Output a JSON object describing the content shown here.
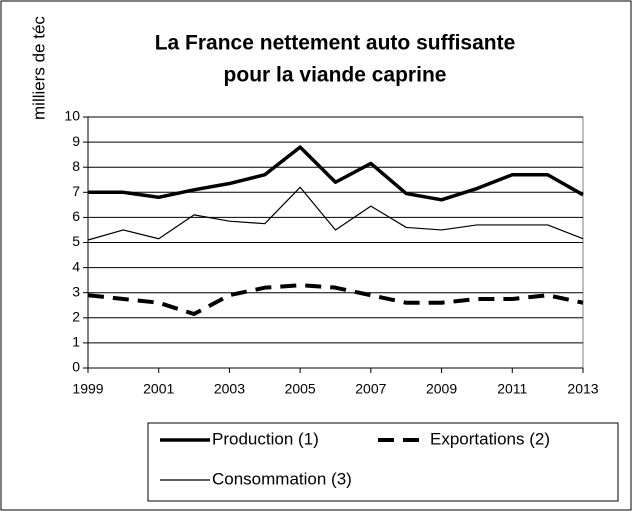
{
  "chart_data": {
    "type": "line",
    "title": [
      "La France nettement auto suffisante",
      "pour la  viande caprine"
    ],
    "y_label": "milliers de téc",
    "x": [
      1999,
      2000,
      2001,
      2002,
      2003,
      2004,
      2005,
      2006,
      2007,
      2008,
      2009,
      2010,
      2011,
      2012,
      2013
    ],
    "xlim": [
      1999,
      2013
    ],
    "xticks": [
      1999,
      2001,
      2003,
      2005,
      2007,
      2009,
      2011,
      2013
    ],
    "ylim": [
      0,
      10
    ],
    "yticks": [
      0,
      1,
      2,
      3,
      4,
      5,
      6,
      7,
      8,
      9,
      10
    ],
    "grid": true,
    "legend": "bottom",
    "series": [
      {
        "name": "Production (1)",
        "color": "#000000",
        "style": "thick",
        "values": [
          7.0,
          7.0,
          6.8,
          7.1,
          7.35,
          7.7,
          8.8,
          7.4,
          8.15,
          6.95,
          6.7,
          7.15,
          7.7,
          7.7,
          6.9
        ]
      },
      {
        "name": "Exportations (2)",
        "color": "#000000",
        "style": "dashed",
        "values": [
          2.9,
          2.75,
          2.6,
          2.15,
          2.9,
          3.2,
          3.3,
          3.2,
          2.9,
          2.6,
          2.6,
          2.75,
          2.75,
          2.9,
          2.6
        ]
      },
      {
        "name": "Consommation (3)",
        "color": "#000000",
        "style": "thin",
        "values": [
          5.1,
          5.5,
          5.15,
          6.1,
          5.85,
          5.75,
          7.2,
          5.5,
          6.45,
          5.6,
          5.5,
          5.7,
          5.7,
          5.7,
          5.15
        ]
      }
    ]
  }
}
